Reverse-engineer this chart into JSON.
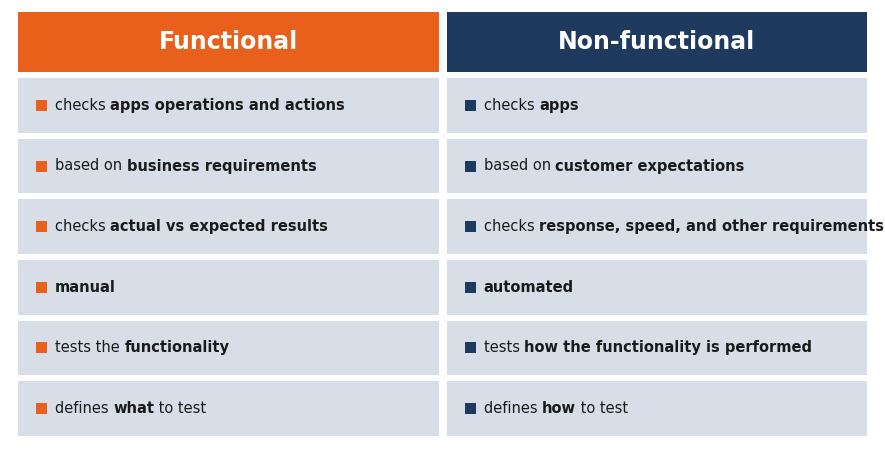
{
  "title_left": "Functional",
  "title_right": "Non-functional",
  "header_left_color": "#E8601C",
  "header_right_color": "#1E3A5F",
  "header_text_color": "#FFFFFF",
  "row_bg_color": "#D8DEE8",
  "bg_color": "#FFFFFF",
  "bullet_left_color": "#E8601C",
  "bullet_right_color": "#1E3A5F",
  "text_color": "#1a1a1a",
  "rows_left": [
    [
      [
        "checks ",
        false
      ],
      [
        "apps operations and actions",
        true
      ]
    ],
    [
      [
        "based on ",
        false
      ],
      [
        "business requirements",
        true
      ]
    ],
    [
      [
        "checks ",
        false
      ],
      [
        "actual vs expected results",
        true
      ]
    ],
    [
      [
        "manual",
        true
      ]
    ],
    [
      [
        "tests the ",
        false
      ],
      [
        "functionality",
        true
      ]
    ],
    [
      [
        "defines ",
        false
      ],
      [
        "what",
        true
      ],
      [
        " to test",
        false
      ]
    ]
  ],
  "rows_right": [
    [
      [
        "checks ",
        false
      ],
      [
        "apps",
        true
      ]
    ],
    [
      [
        "based on ",
        false
      ],
      [
        "customer expectations",
        true
      ]
    ],
    [
      [
        "checks ",
        false
      ],
      [
        "response, speed, and other requirements",
        true
      ]
    ],
    [
      [
        "automated",
        true
      ]
    ],
    [
      [
        "tests ",
        false
      ],
      [
        "how the functionality is performed",
        true
      ]
    ],
    [
      [
        "defines ",
        false
      ],
      [
        "how",
        true
      ],
      [
        " to test",
        false
      ]
    ]
  ],
  "figsize": [
    8.85,
    4.58
  ],
  "dpi": 100
}
